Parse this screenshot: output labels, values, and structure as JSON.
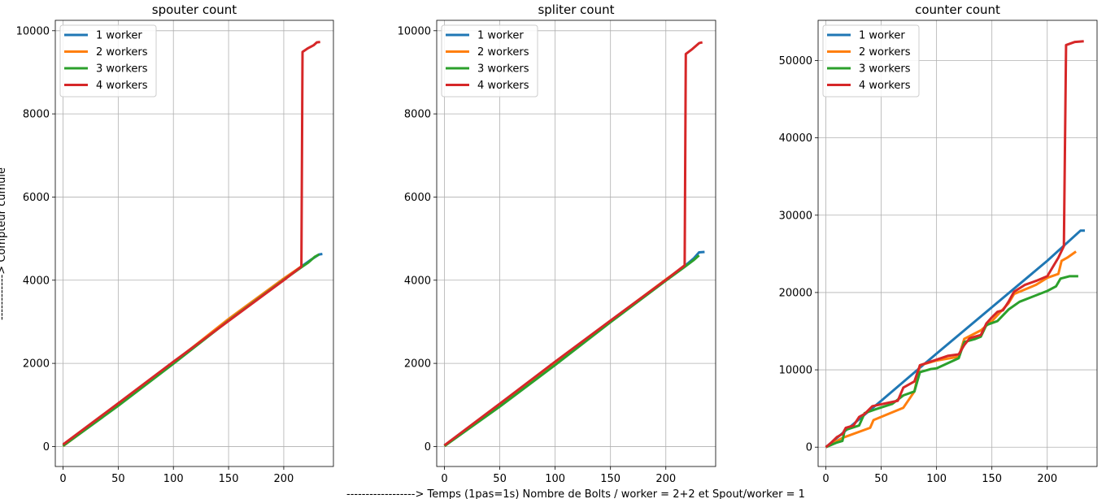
{
  "figure": {
    "xlabel": "------------------> Temps (1pas=1s)  Nombre de Bolts / worker = 2+2 et Spout/worker = 1",
    "ylabel": "------------> Compteur cumulé"
  },
  "chart_data": [
    {
      "type": "line",
      "title": "spouter count",
      "xlim": [
        -7,
        245
      ],
      "ylim": [
        -480,
        10250
      ],
      "xticks": [
        0,
        50,
        100,
        150,
        200
      ],
      "yticks": [
        0,
        2000,
        4000,
        6000,
        8000,
        10000
      ],
      "grid": true,
      "legend": "top-left",
      "series": [
        {
          "name": "1 worker",
          "color": "#1f77b4",
          "points": [
            [
              0,
              20
            ],
            [
              50,
              1020
            ],
            [
              100,
              2020
            ],
            [
              150,
              3030
            ],
            [
              200,
              4020
            ],
            [
              217,
              4350
            ],
            [
              225,
              4500
            ],
            [
              232,
              4620
            ],
            [
              235,
              4630
            ]
          ]
        },
        {
          "name": "2 workers",
          "color": "#ff7f0e",
          "points": [
            [
              0,
              10
            ],
            [
              50,
              1000
            ],
            [
              100,
              2020
            ],
            [
              150,
              3070
            ],
            [
              200,
              4040
            ],
            [
              217,
              4350
            ]
          ]
        },
        {
          "name": "3 workers",
          "color": "#2ca02c",
          "points": [
            [
              0,
              15
            ],
            [
              50,
              980
            ],
            [
              100,
              1990
            ],
            [
              150,
              3030
            ],
            [
              200,
              4010
            ],
            [
              217,
              4330
            ],
            [
              222,
              4420
            ],
            [
              228,
              4560
            ],
            [
              232,
              4620
            ]
          ]
        },
        {
          "name": "4 workers",
          "color": "#d62728",
          "points": [
            [
              0,
              50
            ],
            [
              50,
              1040
            ],
            [
              100,
              2040
            ],
            [
              150,
              3020
            ],
            [
              200,
              4000
            ],
            [
              216,
              4330
            ],
            [
              217,
              9490
            ],
            [
              222,
              9580
            ],
            [
              227,
              9650
            ],
            [
              230,
              9720
            ],
            [
              233,
              9730
            ]
          ]
        }
      ]
    },
    {
      "type": "line",
      "title": "spliter count",
      "xlim": [
        -7,
        245
      ],
      "ylim": [
        -480,
        10250
      ],
      "xticks": [
        0,
        50,
        100,
        150,
        200
      ],
      "yticks": [
        0,
        2000,
        4000,
        6000,
        8000,
        10000
      ],
      "grid": true,
      "legend": "top-left",
      "series": [
        {
          "name": "1 worker",
          "color": "#1f77b4",
          "points": [
            [
              0,
              20
            ],
            [
              50,
              1010
            ],
            [
              100,
              2010
            ],
            [
              150,
              3010
            ],
            [
              200,
              4010
            ],
            [
              217,
              4340
            ],
            [
              225,
              4520
            ],
            [
              230,
              4670
            ],
            [
              235,
              4680
            ]
          ]
        },
        {
          "name": "2 workers",
          "color": "#ff7f0e",
          "points": [
            [
              0,
              10
            ],
            [
              50,
              1000
            ],
            [
              100,
              2010
            ],
            [
              150,
              3020
            ],
            [
              200,
              4020
            ],
            [
              217,
              4340
            ]
          ]
        },
        {
          "name": "3 workers",
          "color": "#2ca02c",
          "points": [
            [
              0,
              10
            ],
            [
              50,
              960
            ],
            [
              100,
              1960
            ],
            [
              150,
              2990
            ],
            [
              200,
              3990
            ],
            [
              217,
              4320
            ],
            [
              225,
              4480
            ],
            [
              230,
              4600
            ]
          ]
        },
        {
          "name": "4 workers",
          "color": "#d62728",
          "points": [
            [
              0,
              30
            ],
            [
              50,
              1030
            ],
            [
              100,
              2040
            ],
            [
              150,
              3030
            ],
            [
              200,
              4010
            ],
            [
              217,
              4360
            ],
            [
              218,
              9440
            ],
            [
              224,
              9560
            ],
            [
              230,
              9700
            ],
            [
              233,
              9720
            ]
          ]
        }
      ]
    },
    {
      "type": "line",
      "title": "counter count",
      "xlim": [
        -7,
        245
      ],
      "ylim": [
        -2500,
        55200
      ],
      "xticks": [
        0,
        50,
        100,
        150,
        200
      ],
      "yticks": [
        0,
        10000,
        20000,
        30000,
        40000,
        50000
      ],
      "grid": true,
      "legend": "top-left",
      "series": [
        {
          "name": "1 worker",
          "color": "#1f77b4",
          "points": [
            [
              0,
              0
            ],
            [
              50,
              6000
            ],
            [
              100,
              12100
            ],
            [
              150,
              18100
            ],
            [
              200,
              24100
            ],
            [
              230,
              28000
            ],
            [
              234,
              28000
            ]
          ]
        },
        {
          "name": "2 workers",
          "color": "#ff7f0e",
          "points": [
            [
              0,
              0
            ],
            [
              15,
              1200
            ],
            [
              40,
              2500
            ],
            [
              43,
              3500
            ],
            [
              70,
              5100
            ],
            [
              80,
              7200
            ],
            [
              85,
              10600
            ],
            [
              100,
              11200
            ],
            [
              120,
              11700
            ],
            [
              125,
              14000
            ],
            [
              140,
              15100
            ],
            [
              150,
              16300
            ],
            [
              165,
              18600
            ],
            [
              170,
              19800
            ],
            [
              190,
              21000
            ],
            [
              200,
              21900
            ],
            [
              210,
              22400
            ],
            [
              213,
              24100
            ],
            [
              218,
              24500
            ],
            [
              226,
              25300
            ]
          ]
        },
        {
          "name": "3 workers",
          "color": "#2ca02c",
          "points": [
            [
              0,
              0
            ],
            [
              10,
              600
            ],
            [
              15,
              800
            ],
            [
              17,
              2200
            ],
            [
              30,
              2800
            ],
            [
              35,
              4400
            ],
            [
              45,
              4900
            ],
            [
              60,
              5600
            ],
            [
              70,
              6700
            ],
            [
              80,
              7200
            ],
            [
              85,
              9700
            ],
            [
              95,
              10100
            ],
            [
              100,
              10200
            ],
            [
              120,
              11500
            ],
            [
              125,
              13600
            ],
            [
              135,
              14000
            ],
            [
              140,
              14300
            ],
            [
              145,
              15800
            ],
            [
              155,
              16300
            ],
            [
              165,
              17800
            ],
            [
              175,
              18800
            ],
            [
              200,
              20200
            ],
            [
              208,
              20800
            ],
            [
              212,
              21800
            ],
            [
              220,
              22100
            ],
            [
              228,
              22100
            ]
          ]
        },
        {
          "name": "4 workers",
          "color": "#d62728",
          "points": [
            [
              0,
              0
            ],
            [
              5,
              600
            ],
            [
              10,
              1300
            ],
            [
              15,
              1700
            ],
            [
              18,
              2500
            ],
            [
              25,
              2800
            ],
            [
              30,
              3900
            ],
            [
              35,
              4300
            ],
            [
              42,
              5300
            ],
            [
              55,
              5700
            ],
            [
              65,
              6000
            ],
            [
              70,
              7700
            ],
            [
              80,
              8500
            ],
            [
              85,
              10600
            ],
            [
              110,
              11800
            ],
            [
              120,
              12000
            ],
            [
              125,
              13200
            ],
            [
              130,
              14100
            ],
            [
              140,
              14500
            ],
            [
              145,
              16000
            ],
            [
              150,
              16800
            ],
            [
              155,
              17500
            ],
            [
              160,
              17700
            ],
            [
              165,
              18800
            ],
            [
              170,
              20100
            ],
            [
              180,
              21000
            ],
            [
              190,
              21500
            ],
            [
              200,
              22100
            ],
            [
              205,
              23300
            ],
            [
              210,
              24500
            ],
            [
              215,
              26000
            ],
            [
              217,
              52000
            ],
            [
              225,
              52400
            ],
            [
              233,
              52500
            ]
          ]
        }
      ]
    }
  ]
}
